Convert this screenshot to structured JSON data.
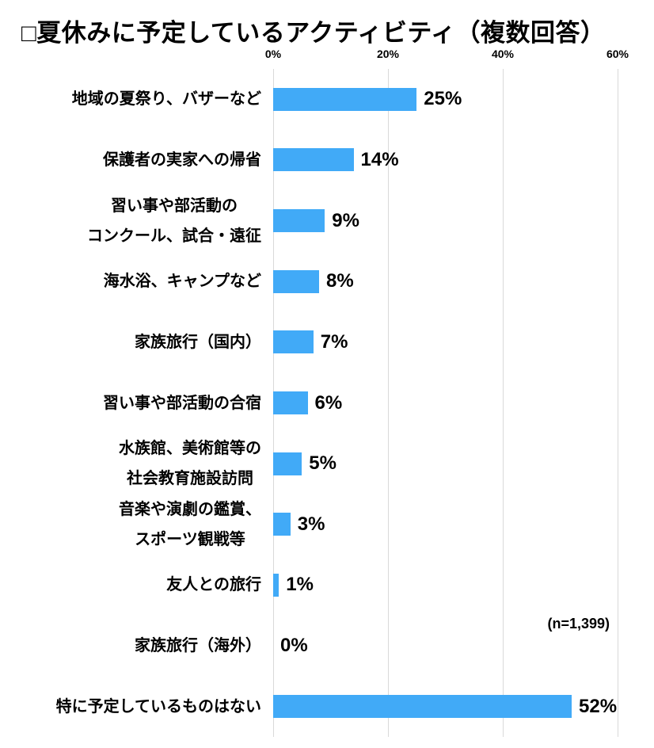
{
  "title": "□夏休みに予定しているアクティビティ（複数回答）",
  "note": "(n=1,399)",
  "colors": {
    "bar": "#41aaf7",
    "gridline": "#d9d9d9",
    "text": "#000000",
    "background": "#ffffff"
  },
  "chart_data": {
    "type": "bar",
    "orientation": "horizontal",
    "title": "□夏休みに予定しているアクティビティ（複数回答）",
    "categories": [
      "地域の夏祭り、バザーなど",
      "保護者の実家への帰省",
      "習い事や部活動の\nコンクール、試合・遠征",
      "海水浴、キャンプなど",
      "家族旅行（国内）",
      "習い事や部活動の合宿",
      "水族館、美術館等の\n社会教育施設訪問",
      "音楽や演劇の鑑賞、\nスポーツ観戦等",
      "友人との旅行",
      "家族旅行（海外）",
      "特に予定しているものはない"
    ],
    "values": [
      25,
      14,
      9,
      8,
      7,
      6,
      5,
      3,
      1,
      0,
      52
    ],
    "value_labels": [
      "25%",
      "14%",
      "9%",
      "8%",
      "7%",
      "6%",
      "5%",
      "3%",
      "1%",
      "0%",
      "52%"
    ],
    "axis": {
      "position": "top",
      "ticks": [
        "0%",
        "20%",
        "40%",
        "60%"
      ],
      "tick_values": [
        0,
        20,
        40,
        60
      ],
      "max": 60
    },
    "grid": true,
    "legend": false,
    "annotation": "(n=1,399)"
  }
}
